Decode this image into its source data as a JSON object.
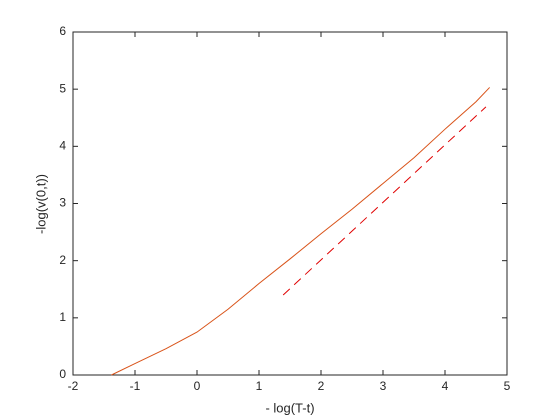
{
  "chart_data": {
    "type": "line",
    "xlabel": "- log(T-t)",
    "ylabel": "-log(v(0,t))",
    "xlim": [
      -2,
      5
    ],
    "xticks": [
      -2,
      -1,
      0,
      1,
      2,
      3,
      4,
      5
    ],
    "ylim": [
      0,
      6
    ],
    "yticks": [
      0,
      1,
      2,
      3,
      4,
      5,
      6
    ],
    "series": [
      {
        "color": "#d95319",
        "dash": false,
        "x": [
          -1.38,
          -1,
          -0.5,
          0,
          0.5,
          1,
          1.5,
          2,
          2.5,
          3,
          3.5,
          4,
          4.5,
          4.72
        ],
        "values": [
          0,
          0.2,
          0.46,
          0.75,
          1.15,
          1.6,
          2.03,
          2.47,
          2.9,
          3.35,
          3.8,
          4.3,
          4.78,
          5.03
        ]
      },
      {
        "color": "#e00000",
        "dash": true,
        "x": [
          1.39,
          4.66
        ],
        "values": [
          1.4,
          4.69
        ]
      }
    ]
  }
}
